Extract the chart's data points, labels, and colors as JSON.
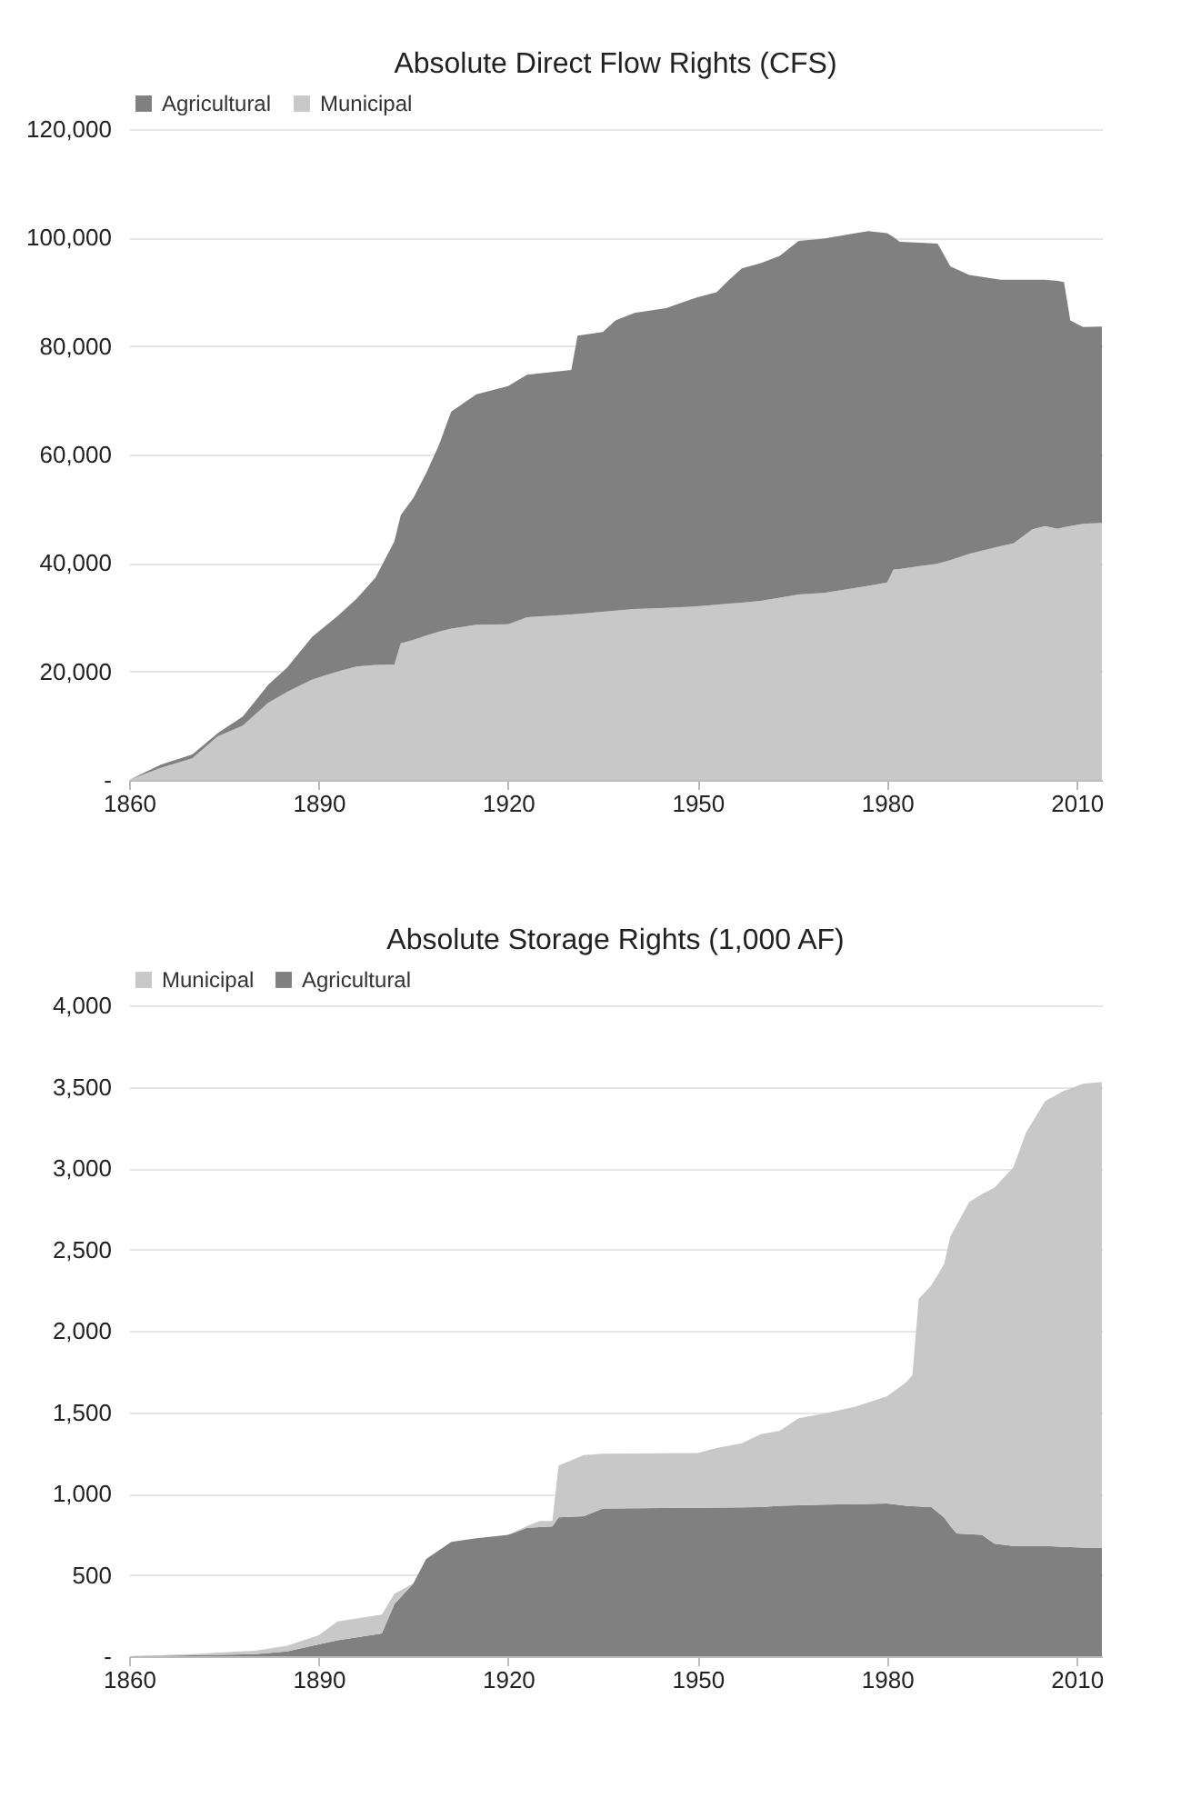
{
  "chart_data": [
    {
      "type": "area",
      "title": "Absolute Direct Flow Rights (CFS)",
      "stacked": true,
      "legend": "top",
      "grid": "y",
      "x": [
        1860,
        1865,
        1870,
        1874,
        1878,
        1882,
        1885,
        1889,
        1893,
        1896,
        1899,
        1902,
        1903,
        1905,
        1907,
        1909,
        1911,
        1915,
        1920,
        1923,
        1930,
        1931,
        1935,
        1937,
        1940,
        1945,
        1950,
        1953,
        1955,
        1957,
        1960,
        1963,
        1966,
        1970,
        1975,
        1977,
        1980,
        1981,
        1982,
        1988,
        1990,
        1993,
        1998,
        2000,
        2003,
        2005,
        2007,
        2008,
        2009,
        2011,
        2014
      ],
      "series": [
        {
          "name": "Municipal",
          "color": "#c8c8c8",
          "values": [
            0,
            2200,
            4000,
            8000,
            10000,
            14200,
            16200,
            18500,
            20000,
            20900,
            21200,
            21300,
            25200,
            25800,
            26600,
            27300,
            27900,
            28600,
            28700,
            30000,
            30500,
            30600,
            31000,
            31200,
            31500,
            31700,
            32000,
            32300,
            32500,
            32700,
            33000,
            33600,
            34200,
            34500,
            35400,
            35800,
            36400,
            38800,
            38900,
            39900,
            40500,
            41700,
            43100,
            43600,
            46200,
            46800,
            46300,
            46600,
            46800,
            47200,
            47400
          ]
        },
        {
          "name": "Agricultural",
          "color": "#808080",
          "values": [
            0,
            600,
            700,
            600,
            1700,
            3300,
            4500,
            7900,
            10200,
            12500,
            16100,
            22700,
            23600,
            26200,
            29900,
            34300,
            40000,
            42500,
            43900,
            44700,
            45100,
            51300,
            51600,
            53500,
            54600,
            55300,
            57000,
            57600,
            59700,
            61600,
            62300,
            63000,
            65200,
            65300,
            65400,
            65400,
            64400,
            61300,
            60300,
            59000,
            54200,
            51400,
            49100,
            48600,
            46000,
            45400,
            45700,
            45200,
            37900,
            36300,
            36200
          ]
        }
      ],
      "xlim": [
        1860,
        2014
      ],
      "xticks": [
        1860,
        1890,
        1920,
        1950,
        1980,
        2010
      ],
      "ylim": [
        0,
        120000
      ],
      "yticks": [
        {
          "value": 0,
          "label": "-"
        },
        {
          "value": 20000,
          "label": "20,000"
        },
        {
          "value": 40000,
          "label": "40,000"
        },
        {
          "value": 60000,
          "label": "60,000"
        },
        {
          "value": 80000,
          "label": "80,000"
        },
        {
          "value": 100000,
          "label": "100,000"
        },
        {
          "value": 120000,
          "label": "120,000"
        }
      ]
    },
    {
      "type": "area",
      "title": "Absolute Storage Rights (1,000 AF)",
      "stacked": true,
      "legend": "top",
      "grid": "y",
      "x": [
        1860,
        1870,
        1880,
        1885,
        1890,
        1893,
        1900,
        1902,
        1905,
        1907,
        1911,
        1915,
        1920,
        1923,
        1925,
        1927,
        1928,
        1932,
        1935,
        1950,
        1953,
        1957,
        1960,
        1963,
        1966,
        1970,
        1975,
        1980,
        1983,
        1984,
        1985,
        1987,
        1989,
        1990,
        1991,
        1993,
        1995,
        1997,
        2000,
        2002,
        2005,
        2008,
        2011,
        2014
      ],
      "series": [
        {
          "name": "Agricultural",
          "color": "#808080",
          "values": [
            0,
            5,
            13,
            30,
            72,
            98,
            140,
            320,
            447,
            597,
            703,
            725,
            746,
            789,
            793,
            797,
            853,
            861,
            908,
            912,
            913,
            915,
            916,
            925,
            928,
            931,
            935,
            938,
            925,
            922,
            920,
            916,
            853,
            800,
            754,
            750,
            746,
            691,
            678,
            678,
            678,
            672,
            667,
            665
          ]
        },
        {
          "name": "Municipal",
          "color": "#c8c8c8",
          "values": [
            0,
            8,
            21,
            34,
            56,
            115,
            116,
            64,
            0,
            0,
            0,
            0,
            0,
            11,
            38,
            34,
            319,
            375,
            337,
            337,
            366,
            393,
            448,
            460,
            534,
            561,
            599,
            660,
            758,
            804,
            1275,
            1364,
            1555,
            1778,
            1896,
            2042,
            2094,
            2189,
            2327,
            2541,
            2733,
            2803,
            2851,
            2865
          ]
        }
      ],
      "xlim": [
        1860,
        2014
      ],
      "xticks": [
        1860,
        1890,
        1920,
        1950,
        1980,
        2010
      ],
      "ylim": [
        0,
        4000
      ],
      "yticks": [
        {
          "value": 0,
          "label": "-"
        },
        {
          "value": 500,
          "label": "500"
        },
        {
          "value": 1000,
          "label": "1,000"
        },
        {
          "value": 1500,
          "label": "1,500"
        },
        {
          "value": 2000,
          "label": "2,000"
        },
        {
          "value": 2500,
          "label": "2,500"
        },
        {
          "value": 3000,
          "label": "3,000"
        },
        {
          "value": 3500,
          "label": "3,500"
        },
        {
          "value": 4000,
          "label": "4,000"
        }
      ]
    }
  ]
}
